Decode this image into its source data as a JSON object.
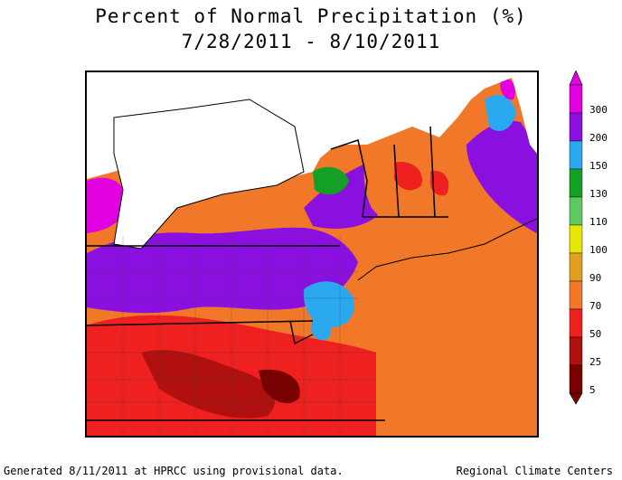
{
  "title": "Percent of Normal Precipitation (%)",
  "date_range": "7/28/2011 - 8/10/2011",
  "legend": {
    "labels": [
      "300",
      "200",
      "150",
      "130",
      "110",
      "100",
      "90",
      "70",
      "50",
      "25",
      "5"
    ],
    "colors": [
      "#e000e0",
      "#8a10e0",
      "#2aa8f0",
      "#14a024",
      "#60c860",
      "#e6e600",
      "#e0a020",
      "#f07828",
      "#ee2020",
      "#b01010",
      "#780000"
    ]
  },
  "footer": {
    "left": "Generated 8/11/2011 at HPRCC using provisional data.",
    "right": "Regional Climate Centers"
  }
}
